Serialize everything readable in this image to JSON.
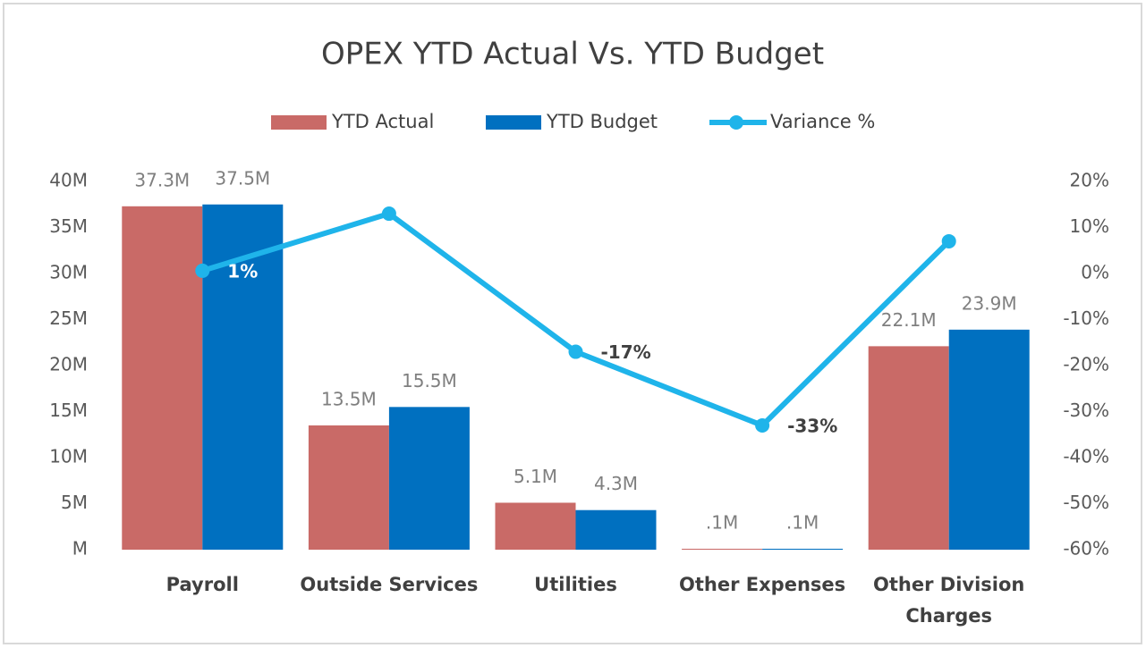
{
  "chart_data": {
    "type": "bar",
    "title": "OPEX YTD Actual Vs. YTD Budget",
    "categories": [
      "Payroll",
      "Outside Services",
      "Utilities",
      "Other Expenses",
      "Other Division Charges"
    ],
    "series": [
      {
        "name": "YTD Actual",
        "color": "#c96a67",
        "values": [
          37300000,
          13500000,
          5100000,
          100000,
          22100000
        ],
        "value_labels": [
          "37.3M",
          "13.5M",
          "5.1M",
          ".1M",
          "22.1M"
        ]
      },
      {
        "name": "YTD Budget",
        "color": "#0070c0",
        "values": [
          37500000,
          15500000,
          4300000,
          100000,
          23900000
        ],
        "value_labels": [
          "37.5M",
          "15.5M",
          "4.3M",
          ".1M",
          "23.9M"
        ]
      },
      {
        "name": "Variance %",
        "color": "#1fb4ea",
        "type": "line",
        "axis": "y2",
        "values": [
          0.6,
          13,
          -17,
          -33,
          7
        ],
        "value_labels": [
          "1%",
          null,
          "-17%",
          "-33%",
          null
        ]
      }
    ],
    "ylim": [
      0,
      40000000
    ],
    "yticks": [
      {
        "value": 0,
        "label": "M"
      },
      {
        "value": 5000000,
        "label": "5M"
      },
      {
        "value": 10000000,
        "label": "10M"
      },
      {
        "value": 15000000,
        "label": "15M"
      },
      {
        "value": 20000000,
        "label": "20M"
      },
      {
        "value": 25000000,
        "label": "25M"
      },
      {
        "value": 30000000,
        "label": "30M"
      },
      {
        "value": 35000000,
        "label": "35M"
      },
      {
        "value": 40000000,
        "label": "40M"
      }
    ],
    "y2lim": [
      -60,
      20
    ],
    "y2ticks": [
      {
        "value": -60,
        "label": "-60%"
      },
      {
        "value": -50,
        "label": "-50%"
      },
      {
        "value": -40,
        "label": "-40%"
      },
      {
        "value": -30,
        "label": "-30%"
      },
      {
        "value": -20,
        "label": "-20%"
      },
      {
        "value": -10,
        "label": "-10%"
      },
      {
        "value": 0,
        "label": "0%"
      },
      {
        "value": 10,
        "label": "10%"
      },
      {
        "value": 20,
        "label": "20%"
      }
    ],
    "grid": false,
    "legend": "top"
  }
}
